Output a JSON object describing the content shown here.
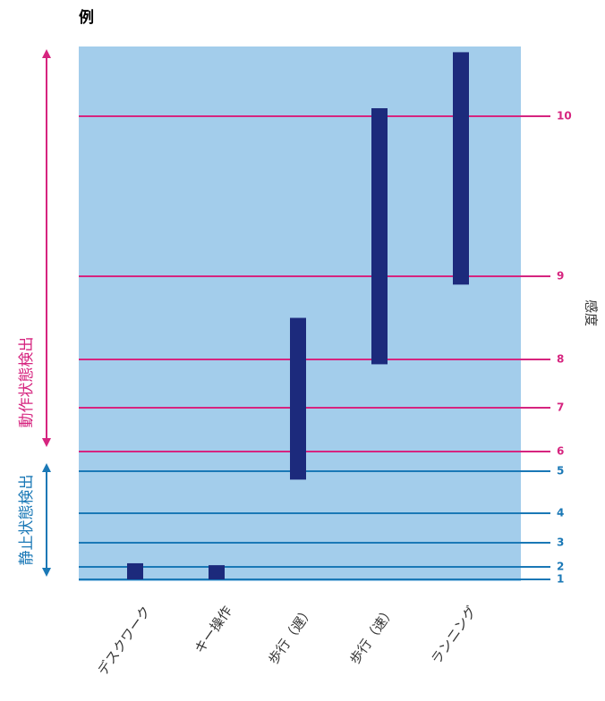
{
  "chart_data": {
    "type": "range-bar",
    "title": "例",
    "ylabel": "感度",
    "categories": [
      "デスクワーク",
      "キー操作",
      "歩行（遅）",
      "歩行（速）",
      "ランニング"
    ],
    "low": [
      1,
      1,
      4.8,
      7.9,
      8.9
    ],
    "high": [
      2.15,
      2.07,
      8.5,
      10.05,
      10.4
    ],
    "color": "#1c2a7c",
    "background": "#a3cdeb",
    "yticks": [
      1,
      2,
      3,
      4,
      5,
      6,
      7,
      8,
      9,
      10
    ],
    "annotations": [
      {
        "text": "動作状態検出",
        "color": "#d6247f",
        "levels": [
          6,
          10
        ]
      },
      {
        "text": "静止状態検出",
        "color": "#1a78b6",
        "levels": [
          1,
          5
        ]
      }
    ]
  }
}
